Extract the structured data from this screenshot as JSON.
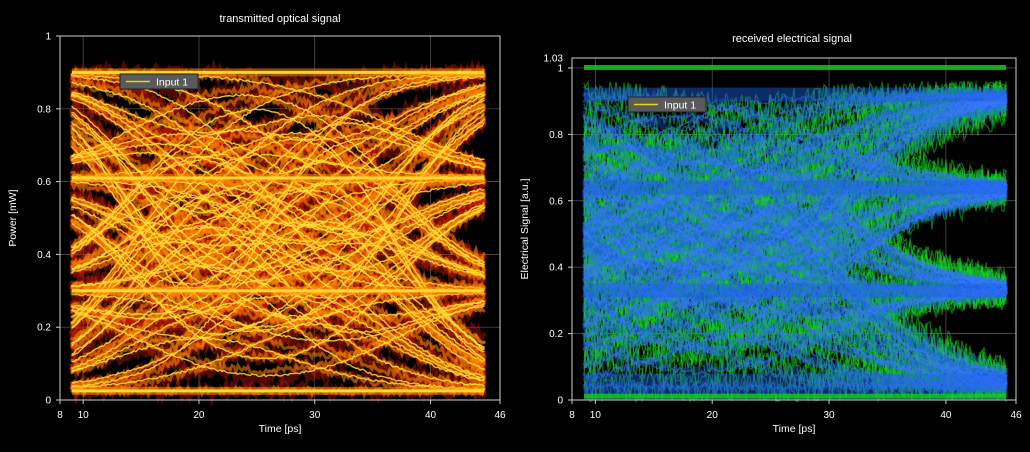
{
  "chart_data": [
    {
      "type": "line",
      "title": "transmitted optical signal",
      "xlabel": "Time [ps]",
      "ylabel": "Power [mW]",
      "xlim": [
        8,
        46
      ],
      "ylim": [
        0,
        1
      ],
      "x_ticks": [
        8,
        10,
        20,
        30,
        40,
        46
      ],
      "y_ticks": [
        0,
        0.2,
        0.4,
        0.6,
        0.8,
        1
      ],
      "grid": true,
      "legend": {
        "position": "top-left",
        "entries": [
          "Input 1"
        ],
        "color": "#e8d21a"
      },
      "signal_levels": [
        0.025,
        0.3,
        0.61,
        0.9
      ],
      "crossing_times": [
        14.8,
        25.6,
        36.6
      ],
      "colors": {
        "core": "#ffe13a",
        "mid": "#ff8a00",
        "edge": "#e02000"
      }
    },
    {
      "type": "line",
      "title": "received electrical signal",
      "xlabel": "Time [ps]",
      "ylabel": "Electrical Signal [a.u.]",
      "xlim": [
        8,
        46
      ],
      "ylim": [
        0,
        1.03
      ],
      "x_ticks": [
        8,
        10,
        20,
        30,
        40,
        46
      ],
      "y_ticks": [
        0,
        0.2,
        0.4,
        0.6,
        0.8,
        1
      ],
      "ymax_label": "1.03",
      "grid": true,
      "legend": {
        "position": "top-left",
        "entries": [
          "Input 1"
        ],
        "color": "#e8d21a"
      },
      "signal_levels": [
        0.04,
        0.33,
        0.64,
        0.92
      ],
      "crossing_times": [
        8.8,
        19.2,
        29.6,
        40.0
      ],
      "colors": {
        "core": "#2060e8",
        "halo": "#16d020"
      }
    }
  ]
}
